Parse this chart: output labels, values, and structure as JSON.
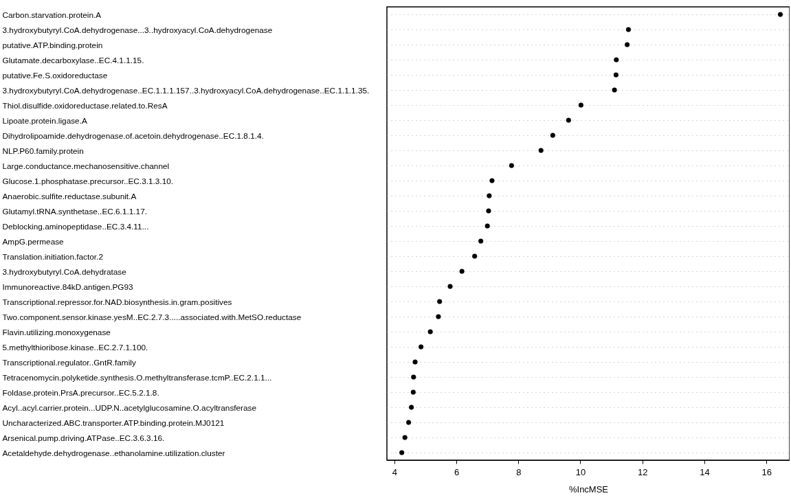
{
  "chart_data": {
    "type": "scatter",
    "xlabel": "%IncMSE",
    "categories": [
      "Carbon.starvation.protein.A",
      "3.hydroxybutyryl.CoA.dehydrogenase...3..hydroxyacyl.CoA.dehydrogenase",
      "putative.ATP.binding.protein",
      "Glutamate.decarboxylase..EC.4.1.1.15.",
      "putative.Fe.S.oxidoreductase",
      "3.hydroxybutyryl.CoA.dehydrogenase..EC.1.1.1.157..3.hydroxyacyl.CoA.dehydrogenase..EC.1.1.1.35.",
      "Thiol.disulfide.oxidoreductase.related.to.ResA",
      "Lipoate.protein.ligase.A",
      "Dihydrolipoamide.dehydrogenase.of.acetoin.dehydrogenase..EC.1.8.1.4.",
      "NLP.P60.family.protein",
      "Large.conductance.mechanosensitive.channel",
      "Glucose.1.phosphatase.precursor..EC.3.1.3.10.",
      "Anaerobic.sulfite.reductase.subunit.A",
      "Glutamyl.tRNA.synthetase..EC.6.1.1.17.",
      "Deblocking.aminopeptidase..EC.3.4.11...",
      "AmpG.permease",
      "Translation.initiation.factor.2",
      "3.hydroxybutyryl.CoA.dehydratase",
      "Immunoreactive.84kD.antigen.PG93",
      "Transcriptional.repressor.for.NAD.biosynthesis.in.gram.positives",
      "Two.component.sensor.kinase.yesM..EC.2.7.3.....associated.with.MetSO.reductase",
      "Flavin.utilizing.monoxygenase",
      "5.methylthioribose.kinase..EC.2.7.1.100.",
      "Transcriptional.regulator..GntR.family",
      "Tetracenomycin.polyketide.synthesis.O.methyltransferase.tcmP..EC.2.1.1...",
      "Foldase.protein.PrsA.precursor..EC.5.2.1.8.",
      "Acyl..acyl.carrier.protein...UDP.N..acetylglucosamine.O.acyltransferase",
      "Uncharacterized.ABC.transporter.ATP.binding.protein.MJ0121",
      "Arsenical.pump.driving.ATPase..EC.3.6.3.16.",
      "Acetaldehyde.dehydrogenase..ethanolamine.utilization.cluster"
    ],
    "values": [
      16.45,
      11.55,
      11.51,
      11.16,
      11.15,
      11.1,
      10.02,
      9.62,
      9.11,
      8.73,
      7.78,
      7.15,
      7.06,
      7.04,
      7.0,
      6.79,
      6.59,
      6.18,
      5.8,
      5.46,
      5.42,
      5.16,
      4.86,
      4.67,
      4.62,
      4.61,
      4.55,
      4.46,
      4.34,
      4.24
    ],
    "color": "#000000",
    "marker": "circle",
    "grid": "y",
    "orientation": "horizontal",
    "xlim": [
      3.76,
      16.75
    ],
    "xticks": [
      4,
      6,
      8,
      10,
      12,
      14,
      16
    ]
  }
}
